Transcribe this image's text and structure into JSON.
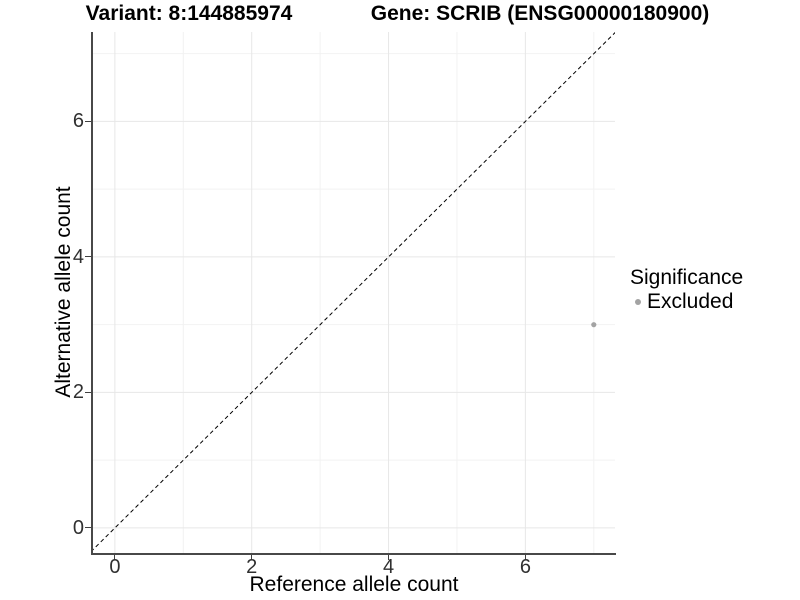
{
  "titles": {
    "variant": "Variant: 8:144885974",
    "gene": "Gene: SCRIB (ENSG00000180900)"
  },
  "axes": {
    "x": {
      "label": "Reference allele count"
    },
    "y": {
      "label": "Alternative allele count"
    }
  },
  "legend": {
    "title": "Significance",
    "items": [
      {
        "label": "Excluded",
        "color": "#a3a3a3"
      }
    ]
  },
  "chart_data": {
    "type": "scatter",
    "title_left": "Variant: 8:144885974",
    "title_right": "Gene: SCRIB (ENSG00000180900)",
    "xlabel": "Reference allele count",
    "ylabel": "Alternative allele count",
    "xlim": [
      -0.32,
      7.31
    ],
    "ylim": [
      -0.37,
      7.32
    ],
    "x_major_ticks": [
      0,
      2,
      4,
      6
    ],
    "x_minor_ticks": [
      1,
      3,
      5,
      7
    ],
    "y_major_ticks": [
      0,
      2,
      4,
      6
    ],
    "y_minor_ticks": [
      1,
      3,
      5,
      7
    ],
    "grid": "major and minor gridlines every 1 unit",
    "legend_position": "right",
    "series": [
      {
        "name": "Excluded",
        "color": "#a3a3a3",
        "points": [
          {
            "x": 7,
            "y": 3
          }
        ]
      }
    ],
    "reference_line": {
      "kind": "identity",
      "equation": "y = x",
      "style": "dashed",
      "color": "#000000"
    },
    "colors": {
      "grid_major": "#e7e7e7",
      "grid_minor": "#f2f2f2",
      "axis_line": "#484848",
      "tick_text": "#303030"
    }
  }
}
